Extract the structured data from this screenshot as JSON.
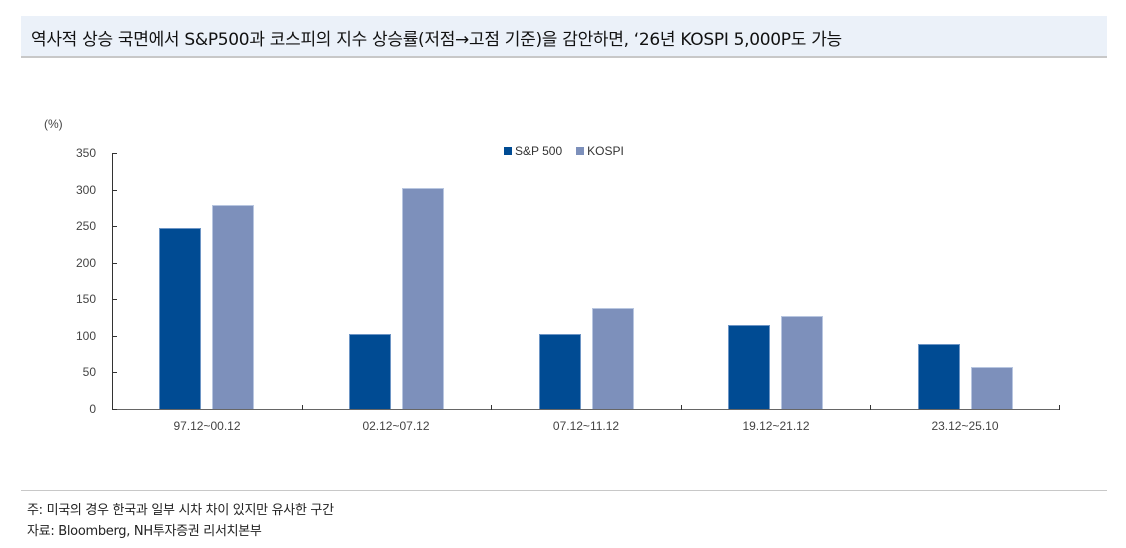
{
  "header": {
    "title": "역사적 상승 국면에서 S&P500과 코스피의 지수 상승률(저점→고점 기준)을 감안하면, ‘26년 KOSPI 5,000P도 가능"
  },
  "colors": {
    "sp500": "#004b93",
    "kospi": "#7d90bb",
    "title_bg": "#ebf1f9"
  },
  "chart_data": {
    "type": "bar",
    "title": "",
    "xlabel": "",
    "ylabel": "(%)",
    "ylim": [
      0,
      350
    ],
    "yticks": [
      0,
      50,
      100,
      150,
      200,
      250,
      300,
      350
    ],
    "grid": false,
    "legend_position": "top-center",
    "categories": [
      "97.12~00.12",
      "02.12~07.12",
      "07.12~11.12",
      "19.12~21.12",
      "23.12~25.10"
    ],
    "series": [
      {
        "name": "S&P 500",
        "color": "#004b93",
        "values": [
          248,
          102,
          102,
          115,
          89
        ]
      },
      {
        "name": "KOSPI",
        "color": "#7d90bb",
        "values": [
          279,
          302,
          138,
          127,
          58
        ]
      }
    ]
  },
  "footer": {
    "note": "주: 미국의 경우 한국과 일부 시차 차이 있지만 유사한 구간",
    "source": "자료: Bloomberg, NH투자증권 리서치본부"
  }
}
